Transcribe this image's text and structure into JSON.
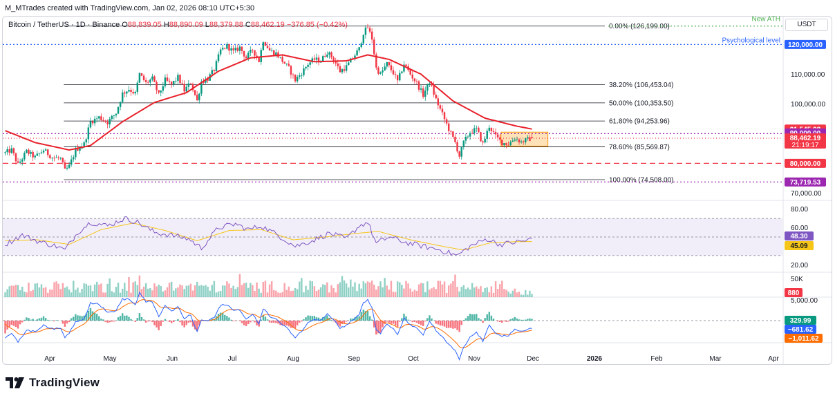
{
  "header": {
    "text": "M_MTrades created with TradingView.com, Jan 02, 2026 08:10 UTC+5:30"
  },
  "legend": {
    "symbol": "Bitcoin / TetherUS · 1D · Binance",
    "open_label": "O",
    "open": "88,839.05",
    "high_label": "H",
    "high": "88,890.09",
    "low_label": "L",
    "low": "88,379.88",
    "close_label": "C",
    "close": "88,462.19",
    "change": "−376.85 (−0.42%)"
  },
  "unit": "USDT",
  "footer": {
    "brand": "TradingView",
    "logo_icon": "tradingview-logo-icon"
  },
  "colors": {
    "up": "#089981",
    "down": "#f23645",
    "ma": "#e8202a",
    "rsi": "#7e57c2",
    "rsi_ma": "#f5c518",
    "macd": "#2962ff",
    "signal": "#ff6d00",
    "ath": "#4caf50",
    "psych": "#2962ff",
    "level90": "#9c27b0",
    "level80": "#f23645",
    "low": "#9c27b0"
  },
  "chart_data": [
    {
      "type": "candlestick",
      "pane": "price",
      "symbol": "Bitcoin / TetherUS",
      "timeframe": "1D",
      "x_labels": [
        "Apr",
        "May",
        "Jun",
        "Jul",
        "Aug",
        "Sep",
        "Oct",
        "Nov",
        "Dec",
        "2026",
        "Feb",
        "Mar",
        "Apr"
      ],
      "y_ticks": [
        "110,000.00",
        "100,000.00",
        "70,000.00"
      ],
      "ylim": [
        68000,
        128000
      ],
      "price_path": [
        [
          0,
          83500
        ],
        [
          3,
          84500
        ],
        [
          6,
          79500
        ],
        [
          10,
          84000
        ],
        [
          14,
          82000
        ],
        [
          18,
          84500
        ],
        [
          22,
          82000
        ],
        [
          26,
          81500
        ],
        [
          28,
          77500
        ],
        [
          30,
          79000
        ],
        [
          33,
          84500
        ],
        [
          37,
          86500
        ],
        [
          40,
          94000
        ],
        [
          44,
          95500
        ],
        [
          48,
          93800
        ],
        [
          52,
          97000
        ],
        [
          55,
          103500
        ],
        [
          58,
          105000
        ],
        [
          61,
          103500
        ],
        [
          63,
          110000
        ],
        [
          66,
          107000
        ],
        [
          69,
          108500
        ],
        [
          72,
          103000
        ],
        [
          75,
          108000
        ],
        [
          78,
          106500
        ],
        [
          81,
          109000
        ],
        [
          84,
          104500
        ],
        [
          87,
          107200
        ],
        [
          90,
          101000
        ],
        [
          92,
          107500
        ],
        [
          95,
          108500
        ],
        [
          98,
          111500
        ],
        [
          101,
          118000
        ],
        [
          104,
          119500
        ],
        [
          107,
          117500
        ],
        [
          110,
          119000
        ],
        [
          113,
          115500
        ],
        [
          116,
          118300
        ],
        [
          119,
          114500
        ],
        [
          121,
          121500
        ],
        [
          124,
          118000
        ],
        [
          127,
          117000
        ],
        [
          130,
          114500
        ],
        [
          133,
          112000
        ],
        [
          136,
          108000
        ],
        [
          139,
          110500
        ],
        [
          142,
          113500
        ],
        [
          145,
          115000
        ],
        [
          148,
          114500
        ],
        [
          151,
          117500
        ],
        [
          154,
          115000
        ],
        [
          157,
          111000
        ],
        [
          160,
          112500
        ],
        [
          163,
          115500
        ],
        [
          166,
          118500
        ],
        [
          168,
          124000
        ],
        [
          170,
          125700
        ],
        [
          172,
          122000
        ],
        [
          174,
          112000
        ],
        [
          176,
          110000
        ],
        [
          179,
          113500
        ],
        [
          182,
          110500
        ],
        [
          184,
          107500
        ],
        [
          187,
          113500
        ],
        [
          190,
          110000
        ],
        [
          193,
          107000
        ],
        [
          196,
          103000
        ],
        [
          199,
          107500
        ],
        [
          202,
          101500
        ],
        [
          205,
          96500
        ],
        [
          208,
          91500
        ],
        [
          211,
          87000
        ],
        [
          213,
          82500
        ],
        [
          215,
          87000
        ],
        [
          218,
          90500
        ],
        [
          221,
          91500
        ],
        [
          224,
          86500
        ],
        [
          227,
          92500
        ],
        [
          230,
          89000
        ],
        [
          233,
          87000
        ],
        [
          236,
          86500
        ],
        [
          239,
          88500
        ],
        [
          242,
          87200
        ],
        [
          245,
          88000
        ],
        [
          247,
          88462
        ]
      ],
      "total_days": 365,
      "ma_path": [
        [
          0,
          91000
        ],
        [
          14,
          87000
        ],
        [
          30,
          84500
        ],
        [
          40,
          86000
        ],
        [
          55,
          94000
        ],
        [
          70,
          100500
        ],
        [
          85,
          103800
        ],
        [
          100,
          111000
        ],
        [
          115,
          115500
        ],
        [
          130,
          116500
        ],
        [
          145,
          114200
        ],
        [
          160,
          114500
        ],
        [
          170,
          116500
        ],
        [
          180,
          115000
        ],
        [
          195,
          110000
        ],
        [
          210,
          101000
        ],
        [
          225,
          95200
        ],
        [
          240,
          92500
        ],
        [
          247,
          91546
        ]
      ],
      "fib_levels": [
        {
          "label": "0.00% (126,199.00)",
          "value": 126199
        },
        {
          "label": "38.20% (106,453.04)",
          "value": 106453.04
        },
        {
          "label": "50.00% (100,353.50)",
          "value": 100353.5
        },
        {
          "label": "61.80% (94,253.96)",
          "value": 94253.96
        },
        {
          "label": "78.60% (85,569.87)",
          "value": 85569.87
        },
        {
          "label": "100.00% (74,508.00)",
          "value": 74508
        }
      ],
      "annotations": [
        {
          "text": "New ATH",
          "value": 126199,
          "color": "#4caf50"
        },
        {
          "text": "Psychological level",
          "value": 120000,
          "color": "#2962ff"
        }
      ],
      "price_labels": [
        {
          "text": "120,000.00",
          "value": 120000,
          "color": "#2962ff"
        },
        {
          "text": "91,545.98",
          "value": 91545.98,
          "color": "#f23645"
        },
        {
          "text": "90,000.00",
          "value": 90000,
          "color": "#9c27b0"
        },
        {
          "text": "88,462.19",
          "value": 88462.19,
          "color": "#f23645",
          "sub": "21:19:17"
        },
        {
          "text": "80,000.00",
          "value": 80000,
          "color": "#f23645"
        },
        {
          "text": "73,719.53",
          "value": 73719.53,
          "color": "#9c27b0"
        }
      ],
      "range_box": {
        "from_day": 233,
        "to_day": 255,
        "low": 85800,
        "high": 90500
      }
    },
    {
      "type": "line",
      "pane": "rsi",
      "y_ticks": [
        "80.00",
        "60.00",
        "20.00"
      ],
      "ylim": [
        15,
        85
      ],
      "band": [
        30,
        70
      ],
      "rsi_path": [
        [
          0,
          42
        ],
        [
          8,
          52
        ],
        [
          16,
          45
        ],
        [
          24,
          40
        ],
        [
          28,
          36
        ],
        [
          34,
          55
        ],
        [
          40,
          66
        ],
        [
          48,
          62
        ],
        [
          56,
          70
        ],
        [
          62,
          66
        ],
        [
          70,
          55
        ],
        [
          78,
          52
        ],
        [
          86,
          48
        ],
        [
          92,
          38
        ],
        [
          100,
          60
        ],
        [
          108,
          64
        ],
        [
          114,
          58
        ],
        [
          120,
          62
        ],
        [
          128,
          52
        ],
        [
          136,
          40
        ],
        [
          144,
          46
        ],
        [
          152,
          54
        ],
        [
          160,
          48
        ],
        [
          166,
          62
        ],
        [
          170,
          66
        ],
        [
          174,
          43
        ],
        [
          180,
          50
        ],
        [
          188,
          44
        ],
        [
          196,
          40
        ],
        [
          204,
          36
        ],
        [
          212,
          30
        ],
        [
          218,
          40
        ],
        [
          226,
          48
        ],
        [
          232,
          42
        ],
        [
          238,
          44
        ],
        [
          244,
          46
        ],
        [
          247,
          48.3
        ]
      ],
      "rsi_ma_path": [
        [
          0,
          46
        ],
        [
          15,
          47
        ],
        [
          30,
          42
        ],
        [
          45,
          58
        ],
        [
          60,
          65
        ],
        [
          75,
          57
        ],
        [
          90,
          46
        ],
        [
          105,
          57
        ],
        [
          120,
          58
        ],
        [
          135,
          47
        ],
        [
          150,
          50
        ],
        [
          165,
          54
        ],
        [
          175,
          56
        ],
        [
          190,
          47
        ],
        [
          205,
          40
        ],
        [
          215,
          36
        ],
        [
          228,
          44
        ],
        [
          240,
          45
        ],
        [
          247,
          45.09
        ]
      ],
      "labels": [
        {
          "text": "48.30",
          "value": 48.3,
          "color": "#7e57c2"
        },
        {
          "text": "45.09",
          "value": 45.09,
          "color": "#f5c518"
        }
      ]
    },
    {
      "type": "bar",
      "pane": "volume",
      "y_ticks": [
        "50K"
      ],
      "label": "880",
      "bars_seed": 7
    },
    {
      "type": "line",
      "pane": "macd",
      "y_ticks": [
        "5,000.00"
      ],
      "labels": [
        {
          "text": "329.99",
          "color": "#089981"
        },
        {
          "text": "−681.62",
          "color": "#2962ff"
        },
        {
          "text": "−1,011.62",
          "color": "#ff6d00"
        }
      ]
    }
  ]
}
